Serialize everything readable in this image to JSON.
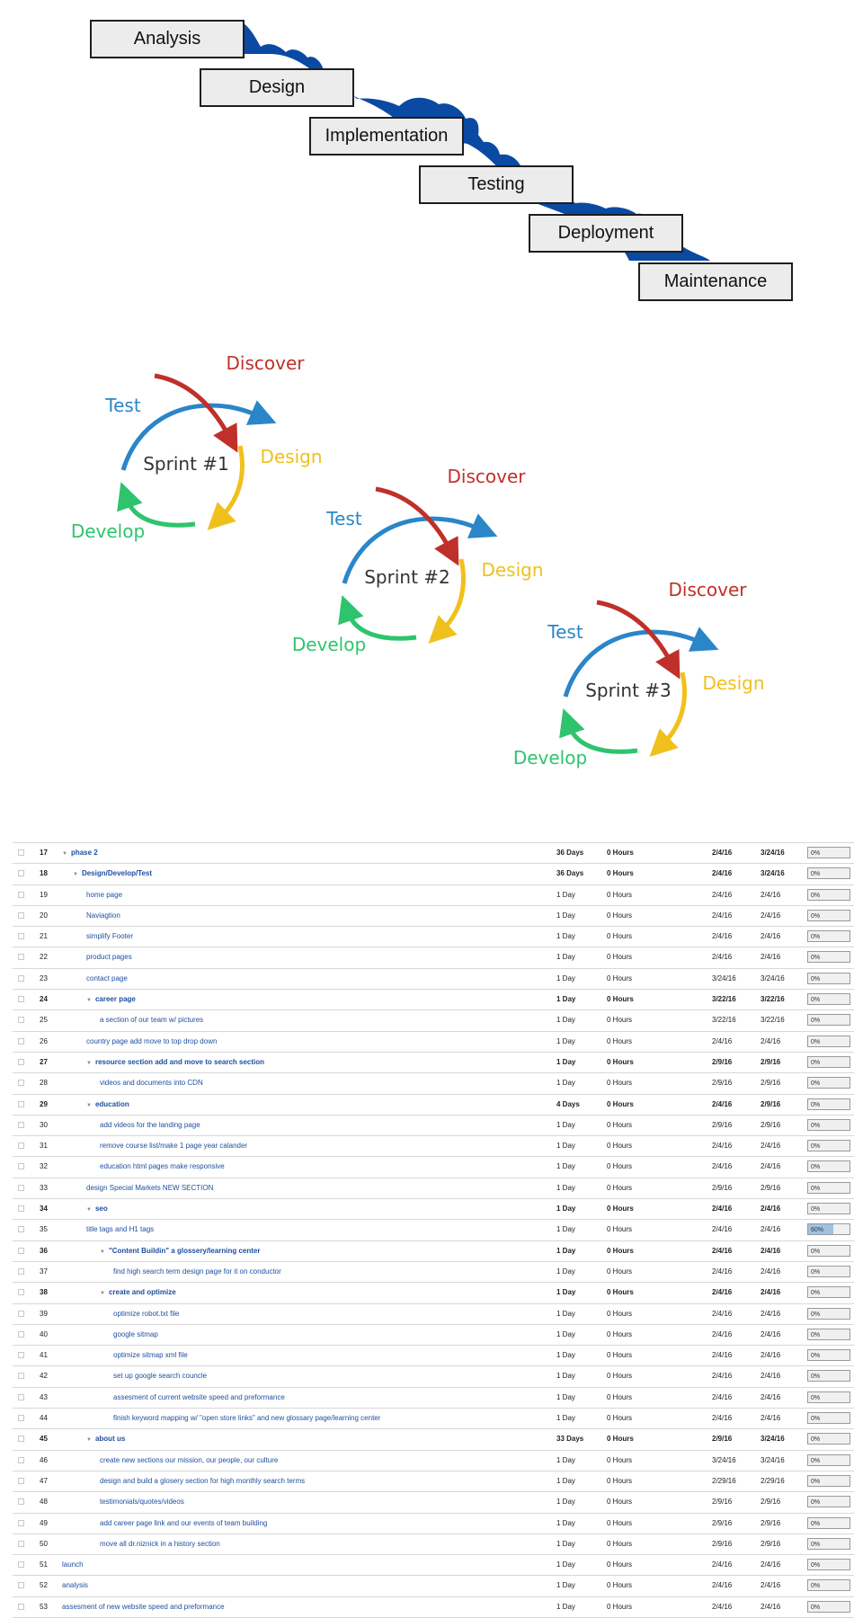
{
  "waterfall": {
    "color": "#0a4aa3",
    "steps": [
      "Analysis",
      "Design",
      "Implementation",
      "Testing",
      "Deployment",
      "Maintenance"
    ]
  },
  "sprints": {
    "colors": {
      "discover": "#c0302a",
      "design": "#f0c01c",
      "develop": "#2ec46e",
      "test": "#2a86c8",
      "label": "#333333"
    },
    "items": [
      {
        "title": "Sprint #1",
        "discover": "Discover",
        "design": "Design",
        "develop": "Develop",
        "test": "Test"
      },
      {
        "title": "Sprint #2",
        "discover": "Discover",
        "design": "Design",
        "develop": "Develop",
        "test": "Test"
      },
      {
        "title": "Sprint #3",
        "discover": "Discover",
        "design": "Design",
        "develop": "Develop",
        "test": "Test"
      }
    ]
  },
  "gantt": {
    "rows": [
      {
        "num": "17",
        "name": "phase 2",
        "level": 0,
        "bold": true,
        "twisty": true,
        "duration": "36 Days",
        "work": "0 Hours",
        "start": "2/4/16",
        "finish": "3/24/16",
        "progress": "0%",
        "pct": 0
      },
      {
        "num": "18",
        "name": "Design/Develop/Test",
        "level": 1,
        "bold": true,
        "twisty": true,
        "duration": "36 Days",
        "work": "0 Hours",
        "start": "2/4/16",
        "finish": "3/24/16",
        "progress": "0%",
        "pct": 0
      },
      {
        "num": "19",
        "name": "home page",
        "level": 2,
        "bold": false,
        "twisty": false,
        "duration": "1 Day",
        "work": "0 Hours",
        "start": "2/4/16",
        "finish": "2/4/16",
        "progress": "0%",
        "pct": 0
      },
      {
        "num": "20",
        "name": "Naviagtion",
        "level": 2,
        "bold": false,
        "twisty": false,
        "duration": "1 Day",
        "work": "0 Hours",
        "start": "2/4/16",
        "finish": "2/4/16",
        "progress": "0%",
        "pct": 0
      },
      {
        "num": "21",
        "name": "simplify Footer",
        "level": 2,
        "bold": false,
        "twisty": false,
        "duration": "1 Day",
        "work": "0 Hours",
        "start": "2/4/16",
        "finish": "2/4/16",
        "progress": "0%",
        "pct": 0
      },
      {
        "num": "22",
        "name": "product pages",
        "level": 2,
        "bold": false,
        "twisty": false,
        "duration": "1 Day",
        "work": "0 Hours",
        "start": "2/4/16",
        "finish": "2/4/16",
        "progress": "0%",
        "pct": 0
      },
      {
        "num": "23",
        "name": "contact page",
        "level": 2,
        "bold": false,
        "twisty": false,
        "duration": "1 Day",
        "work": "0 Hours",
        "start": "3/24/16",
        "finish": "3/24/16",
        "progress": "0%",
        "pct": 0
      },
      {
        "num": "24",
        "name": "career page",
        "level": 2,
        "bold": true,
        "twisty": true,
        "duration": "1 Day",
        "work": "0 Hours",
        "start": "3/22/16",
        "finish": "3/22/16",
        "progress": "0%",
        "pct": 0
      },
      {
        "num": "25",
        "name": "a section of our team w/ pictures",
        "level": 3,
        "bold": false,
        "twisty": false,
        "duration": "1 Day",
        "work": "0 Hours",
        "start": "3/22/16",
        "finish": "3/22/16",
        "progress": "0%",
        "pct": 0
      },
      {
        "num": "26",
        "name": "country page add move to top drop down",
        "level": 2,
        "bold": false,
        "twisty": false,
        "duration": "1 Day",
        "work": "0 Hours",
        "start": "2/4/16",
        "finish": "2/4/16",
        "progress": "0%",
        "pct": 0
      },
      {
        "num": "27",
        "name": "resource section add and move to search section",
        "level": 2,
        "bold": true,
        "twisty": true,
        "duration": "1 Day",
        "work": "0 Hours",
        "start": "2/9/16",
        "finish": "2/9/16",
        "progress": "0%",
        "pct": 0
      },
      {
        "num": "28",
        "name": "videos and documents into CDN",
        "level": 3,
        "bold": false,
        "twisty": false,
        "duration": "1 Day",
        "work": "0 Hours",
        "start": "2/9/16",
        "finish": "2/9/16",
        "progress": "0%",
        "pct": 0
      },
      {
        "num": "29",
        "name": "education",
        "level": 2,
        "bold": true,
        "twisty": true,
        "duration": "4 Days",
        "work": "0 Hours",
        "start": "2/4/16",
        "finish": "2/9/16",
        "progress": "0%",
        "pct": 0
      },
      {
        "num": "30",
        "name": "add videos for the landing page",
        "level": 3,
        "bold": false,
        "twisty": false,
        "duration": "1 Day",
        "work": "0 Hours",
        "start": "2/9/16",
        "finish": "2/9/16",
        "progress": "0%",
        "pct": 0
      },
      {
        "num": "31",
        "name": "remove course list/make 1 page year calander",
        "level": 3,
        "bold": false,
        "twisty": false,
        "duration": "1 Day",
        "work": "0 Hours",
        "start": "2/4/16",
        "finish": "2/4/16",
        "progress": "0%",
        "pct": 0
      },
      {
        "num": "32",
        "name": "education html pages make responsive",
        "level": 3,
        "bold": false,
        "twisty": false,
        "duration": "1 Day",
        "work": "0 Hours",
        "start": "2/4/16",
        "finish": "2/4/16",
        "progress": "0%",
        "pct": 0
      },
      {
        "num": "33",
        "name": "design Special Markets NEW SECTION",
        "level": 2,
        "bold": false,
        "twisty": false,
        "duration": "1 Day",
        "work": "0 Hours",
        "start": "2/9/16",
        "finish": "2/9/16",
        "progress": "0%",
        "pct": 0
      },
      {
        "num": "34",
        "name": "seo",
        "level": 2,
        "bold": true,
        "twisty": true,
        "duration": "1 Day",
        "work": "0 Hours",
        "start": "2/4/16",
        "finish": "2/4/16",
        "progress": "0%",
        "pct": 0
      },
      {
        "num": "35",
        "name": "title tags and H1 tags",
        "level": 2,
        "bold": false,
        "twisty": false,
        "duration": "1 Day",
        "work": "0 Hours",
        "start": "2/4/16",
        "finish": "2/4/16",
        "progress": "60%",
        "pct": 60
      },
      {
        "num": "36",
        "name": "\"Content Buildin\" a glossery/learning center",
        "level": 3,
        "bold": true,
        "twisty": true,
        "duration": "1 Day",
        "work": "0 Hours",
        "start": "2/4/16",
        "finish": "2/4/16",
        "progress": "0%",
        "pct": 0
      },
      {
        "num": "37",
        "name": "find high search term design page for it on conductor",
        "level": 4,
        "bold": false,
        "twisty": false,
        "duration": "1 Day",
        "work": "0 Hours",
        "start": "2/4/16",
        "finish": "2/4/16",
        "progress": "0%",
        "pct": 0
      },
      {
        "num": "38",
        "name": "create and optimize",
        "level": 3,
        "bold": true,
        "twisty": true,
        "duration": "1 Day",
        "work": "0 Hours",
        "start": "2/4/16",
        "finish": "2/4/16",
        "progress": "0%",
        "pct": 0
      },
      {
        "num": "39",
        "name": "optimize robot.txt file",
        "level": 4,
        "bold": false,
        "twisty": false,
        "duration": "1 Day",
        "work": "0 Hours",
        "start": "2/4/16",
        "finish": "2/4/16",
        "progress": "0%",
        "pct": 0
      },
      {
        "num": "40",
        "name": "google sitmap",
        "level": 4,
        "bold": false,
        "twisty": false,
        "duration": "1 Day",
        "work": "0 Hours",
        "start": "2/4/16",
        "finish": "2/4/16",
        "progress": "0%",
        "pct": 0
      },
      {
        "num": "41",
        "name": "optimize sitmap xml file",
        "level": 4,
        "bold": false,
        "twisty": false,
        "duration": "1 Day",
        "work": "0 Hours",
        "start": "2/4/16",
        "finish": "2/4/16",
        "progress": "0%",
        "pct": 0
      },
      {
        "num": "42",
        "name": "set up google search councle",
        "level": 4,
        "bold": false,
        "twisty": false,
        "duration": "1 Day",
        "work": "0 Hours",
        "start": "2/4/16",
        "finish": "2/4/16",
        "progress": "0%",
        "pct": 0
      },
      {
        "num": "43",
        "name": "assesment of current website speed and preformance",
        "level": 4,
        "bold": false,
        "twisty": false,
        "duration": "1 Day",
        "work": "0 Hours",
        "start": "2/4/16",
        "finish": "2/4/16",
        "progress": "0%",
        "pct": 0
      },
      {
        "num": "44",
        "name": "finish keyword mapping w/ \"open store links\" and new glossary page/learning center",
        "level": 4,
        "bold": false,
        "twisty": false,
        "duration": "1 Day",
        "work": "0 Hours",
        "start": "2/4/16",
        "finish": "2/4/16",
        "progress": "0%",
        "pct": 0
      },
      {
        "num": "45",
        "name": "about us",
        "level": 2,
        "bold": true,
        "twisty": true,
        "duration": "33 Days",
        "work": "0 Hours",
        "start": "2/9/16",
        "finish": "3/24/16",
        "progress": "0%",
        "pct": 0
      },
      {
        "num": "46",
        "name": "create new sections our mission, our people, our culture",
        "level": 3,
        "bold": false,
        "twisty": false,
        "duration": "1 Day",
        "work": "0 Hours",
        "start": "3/24/16",
        "finish": "3/24/16",
        "progress": "0%",
        "pct": 0
      },
      {
        "num": "47",
        "name": "design and build a glosery section for high monthly search terms",
        "level": 3,
        "bold": false,
        "twisty": false,
        "duration": "1 Day",
        "work": "0 Hours",
        "start": "2/29/16",
        "finish": "2/29/16",
        "progress": "0%",
        "pct": 0
      },
      {
        "num": "48",
        "name": "testimonials/quotes/videos",
        "level": 3,
        "bold": false,
        "twisty": false,
        "duration": "1 Day",
        "work": "0 Hours",
        "start": "2/9/16",
        "finish": "2/9/16",
        "progress": "0%",
        "pct": 0
      },
      {
        "num": "49",
        "name": "add career page link and our events of team building",
        "level": 3,
        "bold": false,
        "twisty": false,
        "duration": "1 Day",
        "work": "0 Hours",
        "start": "2/9/16",
        "finish": "2/9/16",
        "progress": "0%",
        "pct": 0
      },
      {
        "num": "50",
        "name": "move all dr.niznick in a history section",
        "level": 3,
        "bold": false,
        "twisty": false,
        "duration": "1 Day",
        "work": "0 Hours",
        "start": "2/9/16",
        "finish": "2/9/16",
        "progress": "0%",
        "pct": 0
      },
      {
        "num": "51",
        "name": "launch",
        "level": 0,
        "bold": false,
        "twisty": false,
        "duration": "1 Day",
        "work": "0 Hours",
        "start": "2/4/16",
        "finish": "2/4/16",
        "progress": "0%",
        "pct": 0
      },
      {
        "num": "52",
        "name": "analysis",
        "level": 0,
        "bold": false,
        "twisty": false,
        "duration": "1 Day",
        "work": "0 Hours",
        "start": "2/4/16",
        "finish": "2/4/16",
        "progress": "0%",
        "pct": 0
      },
      {
        "num": "53",
        "name": "assesment of new website speed and preformance",
        "level": 0,
        "bold": false,
        "twisty": false,
        "duration": "1 Day",
        "work": "0 Hours",
        "start": "2/4/16",
        "finish": "2/4/16",
        "progress": "0%",
        "pct": 0
      }
    ]
  }
}
